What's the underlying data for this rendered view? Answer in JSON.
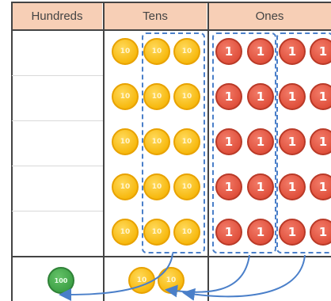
{
  "headers": {
    "hundreds": "Hundreds",
    "tens": "Tens",
    "ones": "Ones"
  },
  "counters": {
    "ten_label": "10",
    "one_label": "1",
    "hundred_label": "100"
  },
  "rows": 5,
  "tens_per_row": 3,
  "ones_per_row": 4,
  "result": {
    "hundreds": 1,
    "tens": 2
  },
  "colors": {
    "header_bg": "#f7cfb6",
    "ten_coin": "#f7b90f",
    "one_coin": "#e0503c",
    "hundred_coin": "#3ea146",
    "dash_and_arrows": "#4a7fc9"
  }
}
